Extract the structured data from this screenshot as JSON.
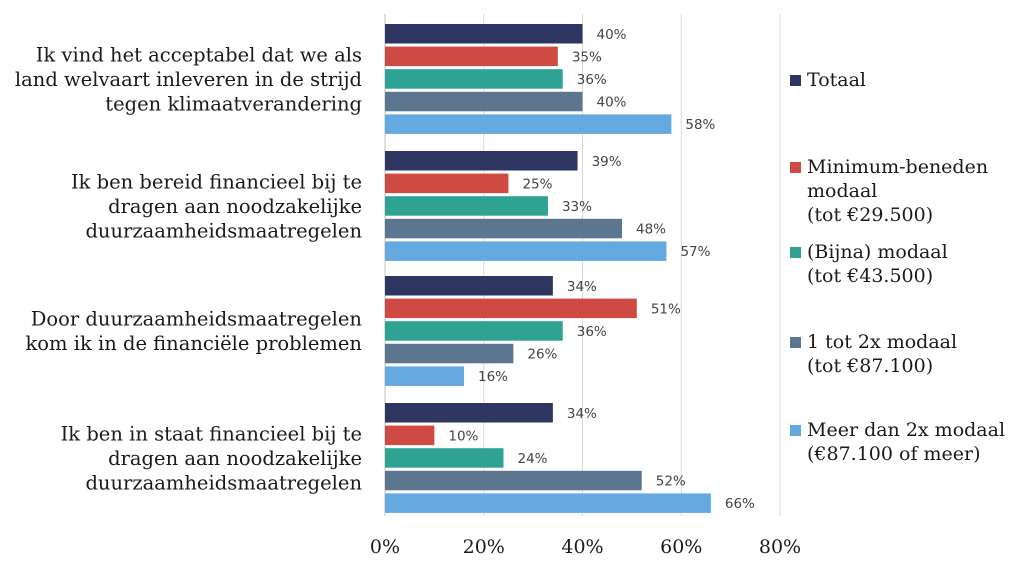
{
  "chart_data": {
    "type": "bar",
    "orientation": "horizontal",
    "categories": [
      "Ik vind het acceptabel dat we als\nland welvaart inleveren in de strijd\ntegen klimaatverandering",
      "Ik ben bereid financieel bij te\ndragen aan noodzakelijke\nduurzaamheidsmaatregelen",
      "Door duurzaamheidsmaatregelen\nkom ik in de financiële problemen",
      "Ik ben in staat financieel bij te\ndragen aan noodzakelijke\nduurzaamheidsmaatregelen"
    ],
    "series": [
      {
        "name": "Totaal",
        "color": "#2e3561",
        "values": [
          40,
          39,
          34,
          34
        ]
      },
      {
        "name": "Minimum-beneden\nmodaal\n(tot €29.500)",
        "color": "#cf4a43",
        "values": [
          35,
          25,
          51,
          10
        ]
      },
      {
        "name": "(Bijna) modaal\n(tot €43.500)",
        "color": "#2ea394",
        "values": [
          36,
          33,
          36,
          24
        ]
      },
      {
        "name": "1 tot 2x modaal\n(tot €87.100)",
        "color": "#5d768f",
        "values": [
          40,
          48,
          26,
          52
        ]
      },
      {
        "name": "Meer dan 2x modaal\n(€87.100 of meer)",
        "color": "#64a9e0",
        "values": [
          58,
          57,
          16,
          66
        ]
      }
    ],
    "xlim": [
      0,
      80
    ],
    "xticks": [
      "0%",
      "20%",
      "40%",
      "60%",
      "80%"
    ],
    "value_suffix": "%",
    "gridlines": true,
    "legend_position": "right"
  }
}
